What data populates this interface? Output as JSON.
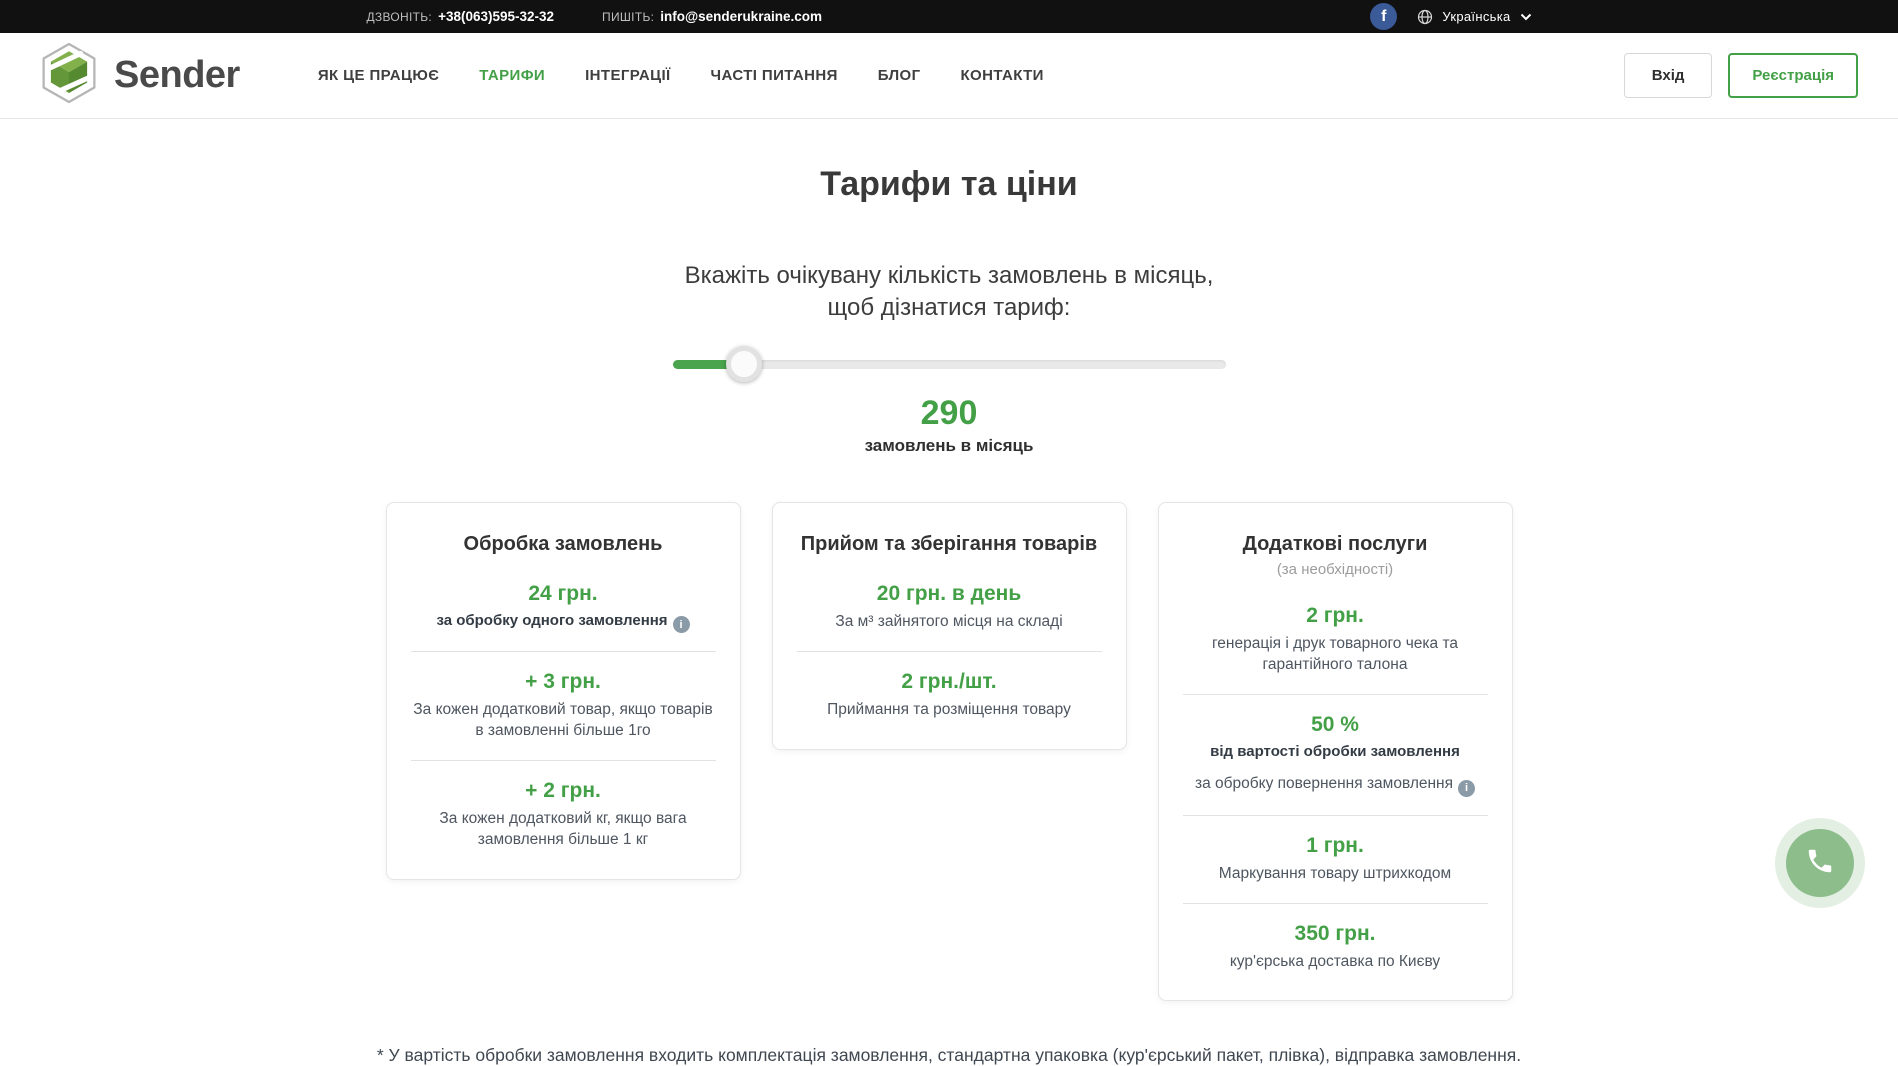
{
  "topbar": {
    "call_label": "ДЗВОНІТЬ:",
    "phone": "+38(063)595-32-32",
    "write_label": "ПИШІТЬ:",
    "email": "info@senderukraine.com",
    "facebook_label": "f",
    "language": "Українська"
  },
  "navbar": {
    "brand": "Sender",
    "menu": [
      {
        "label": "ЯК ЦЕ ПРАЦЮЄ"
      },
      {
        "label": "ТАРИФИ"
      },
      {
        "label": "ІНТЕГРАЦІЇ"
      },
      {
        "label": "ЧАСТІ ПИТАННЯ"
      },
      {
        "label": "БЛОГ"
      },
      {
        "label": "КОНТАКТИ"
      }
    ],
    "login_label": "Вхід",
    "register_label": "Реєстрація"
  },
  "main": {
    "title": "Тарифи та ціни",
    "subtitle_line1": "Вкажіть очікувану кількість замовлень в місяць,",
    "subtitle_line2": "щоб дізнатися тариф:",
    "slider": {
      "value": "290",
      "unit_label": "замовлень в місяць",
      "percent": 13
    },
    "cards": [
      {
        "title": "Обробка замовлень",
        "items": [
          {
            "price": "24 грн.",
            "desc_bold": "за обробку одного замовлення",
            "info": "i"
          },
          {
            "price": "+ 3 грн.",
            "desc": "За кожен додатковий товар, якщо товарів в замовленні більше 1го"
          },
          {
            "price": "+ 2 грн.",
            "desc": "За кожен додатковий кг, якщо вага замовлення більше 1 кг"
          }
        ]
      },
      {
        "title": "Прийом та зберігання товарів",
        "items": [
          {
            "price": "20 грн. в день",
            "desc": "За м³ зайнятого місця на складі"
          },
          {
            "price": "2 грн./шт.",
            "desc": "Приймання та розміщення товару"
          }
        ]
      },
      {
        "title": "Додаткові послуги",
        "subtitle": "(за необхідності)",
        "items": [
          {
            "price": "2 грн.",
            "desc": "генерація і друк товарного чека та гарантійного талона"
          },
          {
            "price": "50 %",
            "desc_bold": "від вартості обробки замовлення",
            "desc": "за обробку повернення замовлення",
            "info": "i"
          },
          {
            "price": "1 грн.",
            "desc": "Маркування товару штрихкодом"
          },
          {
            "price": "350 грн.",
            "desc": "кур'єрська доставка по Києву"
          }
        ]
      }
    ],
    "footnote": "* У вартість обробки замовлення входить комплектація замовлення, стандартна упаковка (кур'єрський пакет, плівка), відправка замовлення."
  },
  "colors": {
    "accent_green": "#43a047",
    "topbar_bg": "#111111",
    "facebook_blue": "#3a5a98",
    "fab_green": "#8cbd8b"
  }
}
